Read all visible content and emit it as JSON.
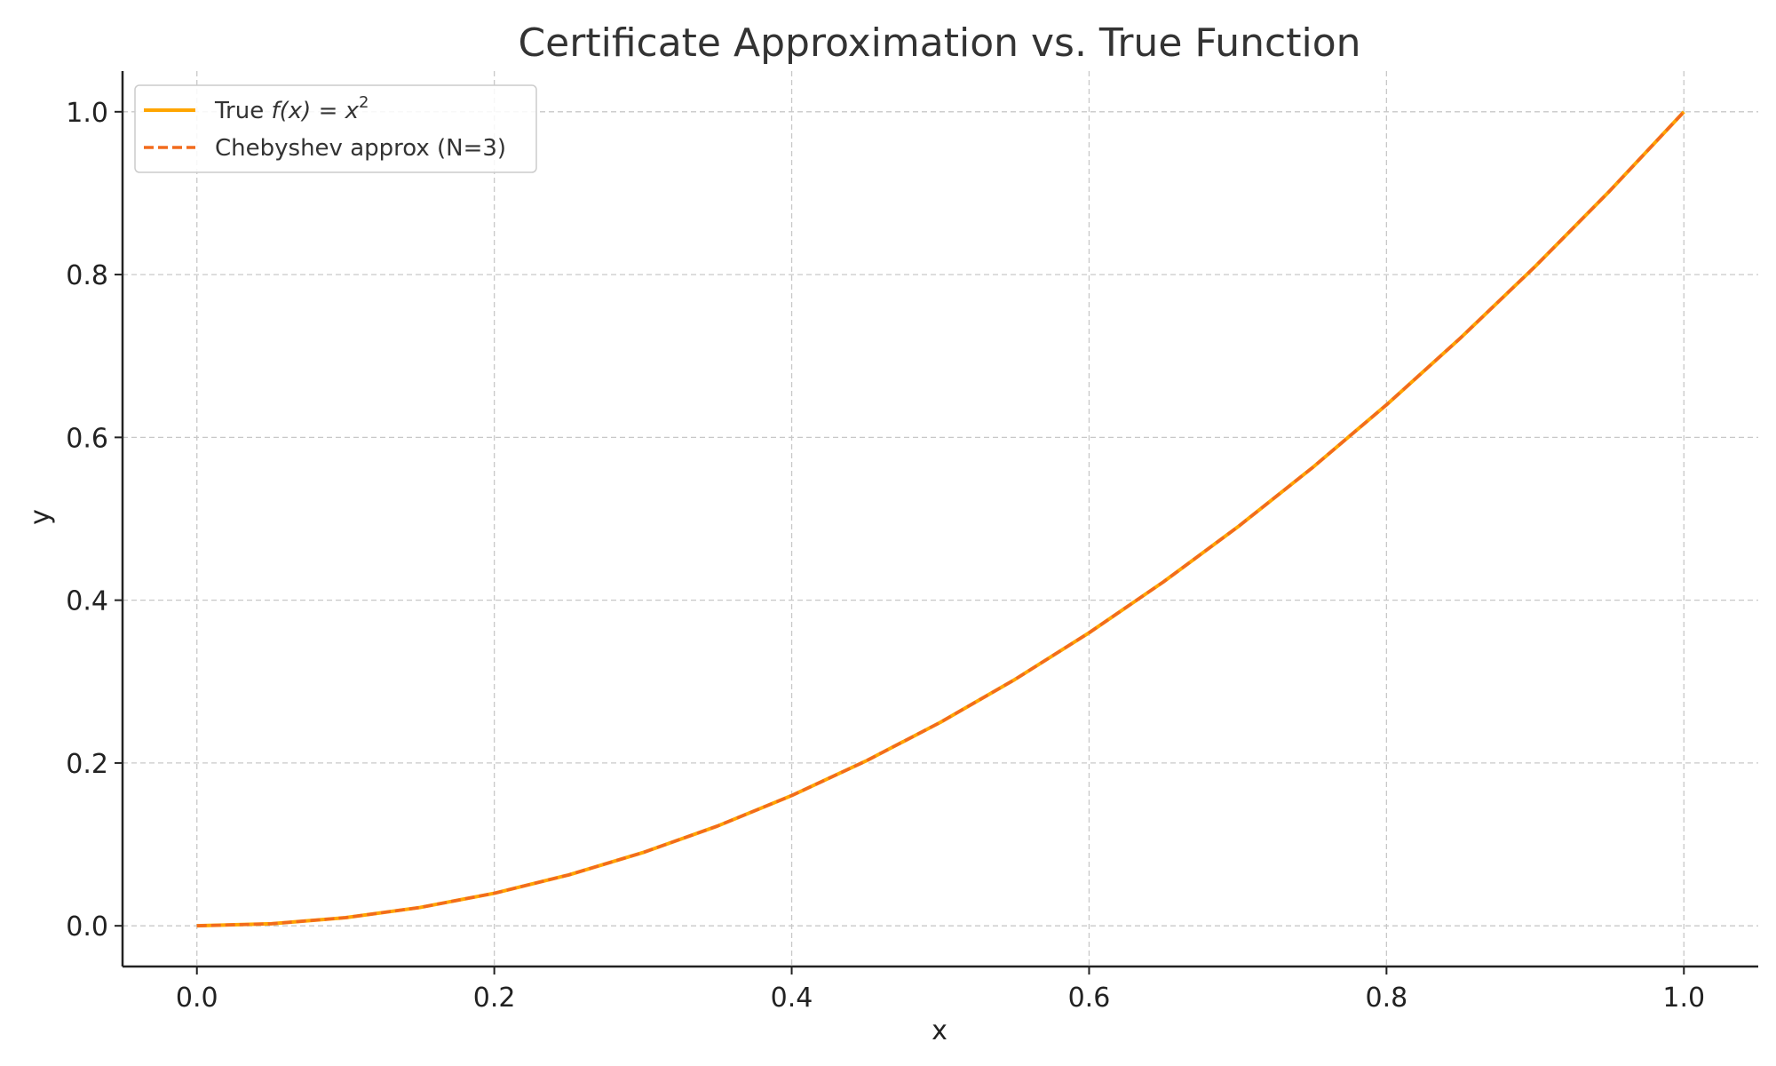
{
  "chart_data": {
    "type": "line",
    "title": "Certificate Approximation vs. True Function",
    "xlabel": "x",
    "ylabel": "y",
    "xlim": [
      -0.05,
      1.05
    ],
    "ylim": [
      -0.05,
      1.05
    ],
    "xticks": [
      0.0,
      0.2,
      0.4,
      0.6,
      0.8,
      1.0
    ],
    "yticks": [
      0.0,
      0.2,
      0.4,
      0.6,
      0.8,
      1.0
    ],
    "xtick_labels": [
      "0.0",
      "0.2",
      "0.4",
      "0.6",
      "0.8",
      "1.0"
    ],
    "ytick_labels": [
      "0.0",
      "0.2",
      "0.4",
      "0.6",
      "0.8",
      "1.0"
    ],
    "grid": true,
    "legend_position": "top-left",
    "x": [
      0.0,
      0.05,
      0.1,
      0.15,
      0.2,
      0.25,
      0.3,
      0.35,
      0.4,
      0.45,
      0.5,
      0.55,
      0.6,
      0.65,
      0.7,
      0.75,
      0.8,
      0.85,
      0.9,
      0.95,
      1.0
    ],
    "series": [
      {
        "name": "True f(x) = x²",
        "legend_prefix": "True ",
        "legend_math": "f(x) = x",
        "legend_sup": "2",
        "color": "#FFA500",
        "style": "solid",
        "values": [
          0.0,
          0.0025,
          0.01,
          0.0225,
          0.04,
          0.0625,
          0.09,
          0.1225,
          0.16,
          0.2025,
          0.25,
          0.3025,
          0.36,
          0.4225,
          0.49,
          0.5625,
          0.64,
          0.7225,
          0.81,
          0.9025,
          1.0
        ]
      },
      {
        "name": "Chebyshev approx (N=3)",
        "color": "#F26B1D",
        "style": "dashed",
        "values": [
          0.0,
          0.0025,
          0.01,
          0.0225,
          0.04,
          0.0625,
          0.09,
          0.1225,
          0.16,
          0.2025,
          0.25,
          0.3025,
          0.36,
          0.4225,
          0.49,
          0.5625,
          0.64,
          0.7225,
          0.81,
          0.9025,
          1.0
        ]
      }
    ]
  }
}
